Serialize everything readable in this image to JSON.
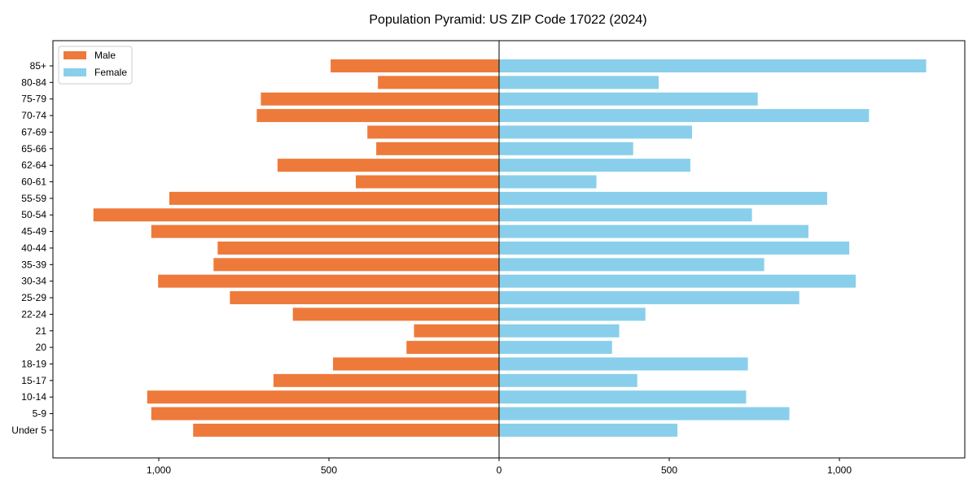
{
  "chart_data": {
    "type": "bar",
    "orientation": "horizontal",
    "title": "Population Pyramid: US ZIP Code 17022 (2024)",
    "xlabel": "",
    "ylabel": "",
    "xlim": [
      -1310,
      1370
    ],
    "xticks": [
      -1000,
      -500,
      0,
      500,
      1000
    ],
    "xtick_labels": [
      "1,000",
      "500",
      "0",
      "500",
      "1,000"
    ],
    "legend_position": "top-left",
    "categories": [
      "85+",
      "80-84",
      "75-79",
      "70-74",
      "67-69",
      "65-66",
      "62-64",
      "60-61",
      "55-59",
      "50-54",
      "45-49",
      "40-44",
      "35-39",
      "30-34",
      "25-29",
      "22-24",
      "21",
      "20",
      "18-19",
      "15-17",
      "10-14",
      "5-9",
      "Under 5"
    ],
    "series": [
      {
        "name": "Male",
        "color": "#ED7A3B",
        "values": [
          495,
          356,
          700,
          712,
          387,
          361,
          651,
          421,
          969,
          1192,
          1022,
          827,
          839,
          1002,
          791,
          606,
          250,
          272,
          488,
          663,
          1034,
          1022,
          899
        ]
      },
      {
        "name": "Female",
        "color": "#89CFEB",
        "values": [
          1255,
          469,
          760,
          1087,
          567,
          394,
          562,
          286,
          964,
          743,
          909,
          1029,
          779,
          1048,
          882,
          430,
          353,
          332,
          731,
          406,
          726,
          853,
          524
        ]
      }
    ]
  }
}
